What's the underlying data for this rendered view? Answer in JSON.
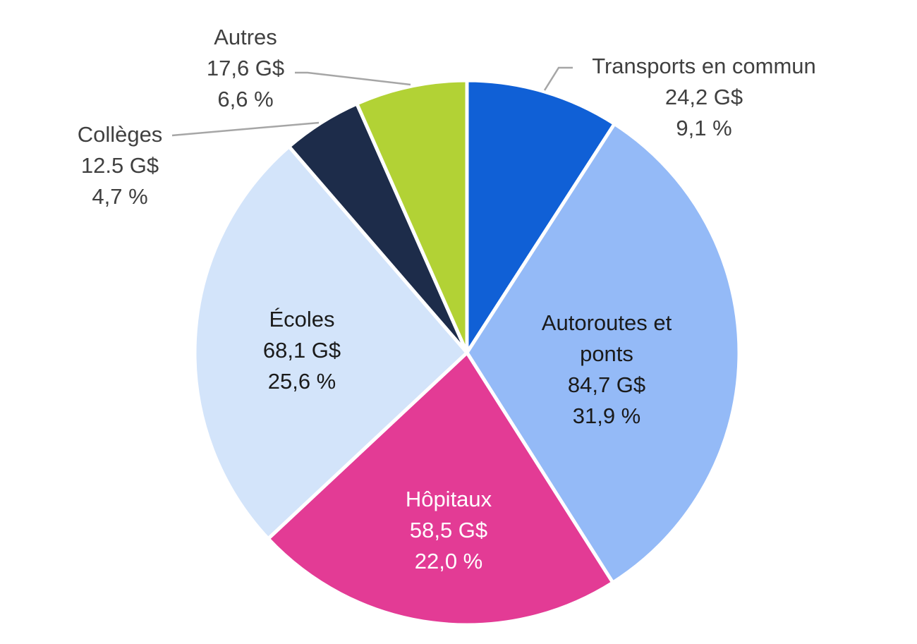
{
  "chart_data": {
    "type": "pie",
    "title": "",
    "start": "12 o'clock",
    "direction": "clockwise",
    "slices": [
      {
        "name": "Transports en commun",
        "label_lines": [
          "Transports en commun"
        ],
        "value_text": "24,2 G$",
        "percent_text": "9,1 %",
        "value": 24.2,
        "percent": 9.1,
        "color": "#1060D6",
        "label_position": "outside",
        "text_color": "#404040"
      },
      {
        "name": "Autoroutes et ponts",
        "label_lines": [
          "Autoroutes et",
          "ponts"
        ],
        "value_text": "84,7 G$",
        "percent_text": "31,9 %",
        "value": 84.7,
        "percent": 31.9,
        "color": "#94BAF7",
        "label_position": "inside",
        "text_color": "#1a1a1a"
      },
      {
        "name": "Hôpitaux",
        "label_lines": [
          "Hôpitaux"
        ],
        "value_text": "58,5 G$",
        "percent_text": "22,0 %",
        "value": 58.5,
        "percent": 22.0,
        "color": "#E33B95",
        "label_position": "inside",
        "text_color": "#ffffff"
      },
      {
        "name": "Écoles",
        "label_lines": [
          "Écoles"
        ],
        "value_text": "68,1 G$",
        "percent_text": "25,6 %",
        "value": 68.1,
        "percent": 25.6,
        "color": "#D3E4FA",
        "label_position": "inside",
        "text_color": "#1a1a1a"
      },
      {
        "name": "Collèges",
        "label_lines": [
          "Collèges"
        ],
        "value_text": "12.5 G$",
        "percent_text": "4,7 %",
        "value": 12.5,
        "percent": 4.7,
        "color": "#1D2C4A",
        "label_position": "outside",
        "text_color": "#404040"
      },
      {
        "name": "Autres",
        "label_lines": [
          "Autres"
        ],
        "value_text": "17,6 G$",
        "percent_text": "6,6 %",
        "value": 17.6,
        "percent": 6.6,
        "color": "#B2D235",
        "label_position": "outside",
        "text_color": "#404040"
      }
    ],
    "leader_line_color": "#A6A6A6",
    "slice_border_color": "#ffffff"
  }
}
